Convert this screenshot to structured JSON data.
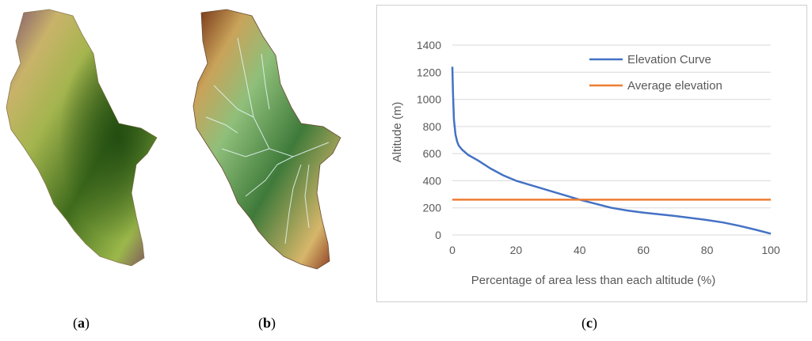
{
  "captions": {
    "a_open": "(",
    "a_letter": "a",
    "a_close": ")",
    "b_open": "(",
    "b_letter": "b",
    "b_close": ")",
    "c_open": "(",
    "c_letter": "c",
    "c_close": ")"
  },
  "colors": {
    "elevation_curve": "#4472C4",
    "average_elevation": "#ED7D31",
    "grid": "#d9d9d9",
    "axis_text": "#595959"
  },
  "chart_data": {
    "type": "line",
    "title": "",
    "xlabel": "Percentage of area less than each altitude (%)",
    "ylabel": "Altitude (m)",
    "xlim": [
      0,
      100
    ],
    "ylim": [
      0,
      1400
    ],
    "xticks": [
      0,
      20,
      40,
      60,
      80,
      100
    ],
    "yticks": [
      0,
      200,
      400,
      600,
      800,
      1000,
      1200,
      1400
    ],
    "grid": true,
    "legend_position": "top-right",
    "series": [
      {
        "name": "Elevation Curve",
        "x": [
          0,
          0.2,
          0.5,
          1,
          1.5,
          2,
          3,
          5,
          8,
          12,
          16,
          20,
          25,
          30,
          35,
          40,
          45,
          50,
          55,
          60,
          70,
          80,
          85,
          90,
          95,
          100
        ],
        "y": [
          1240,
          1050,
          850,
          740,
          690,
          660,
          630,
          590,
          550,
          490,
          440,
          400,
          365,
          330,
          295,
          260,
          230,
          200,
          180,
          165,
          140,
          110,
          92,
          68,
          40,
          10
        ]
      },
      {
        "name": "Average elevation",
        "x": [
          0,
          100
        ],
        "y": [
          260,
          260
        ]
      }
    ]
  }
}
